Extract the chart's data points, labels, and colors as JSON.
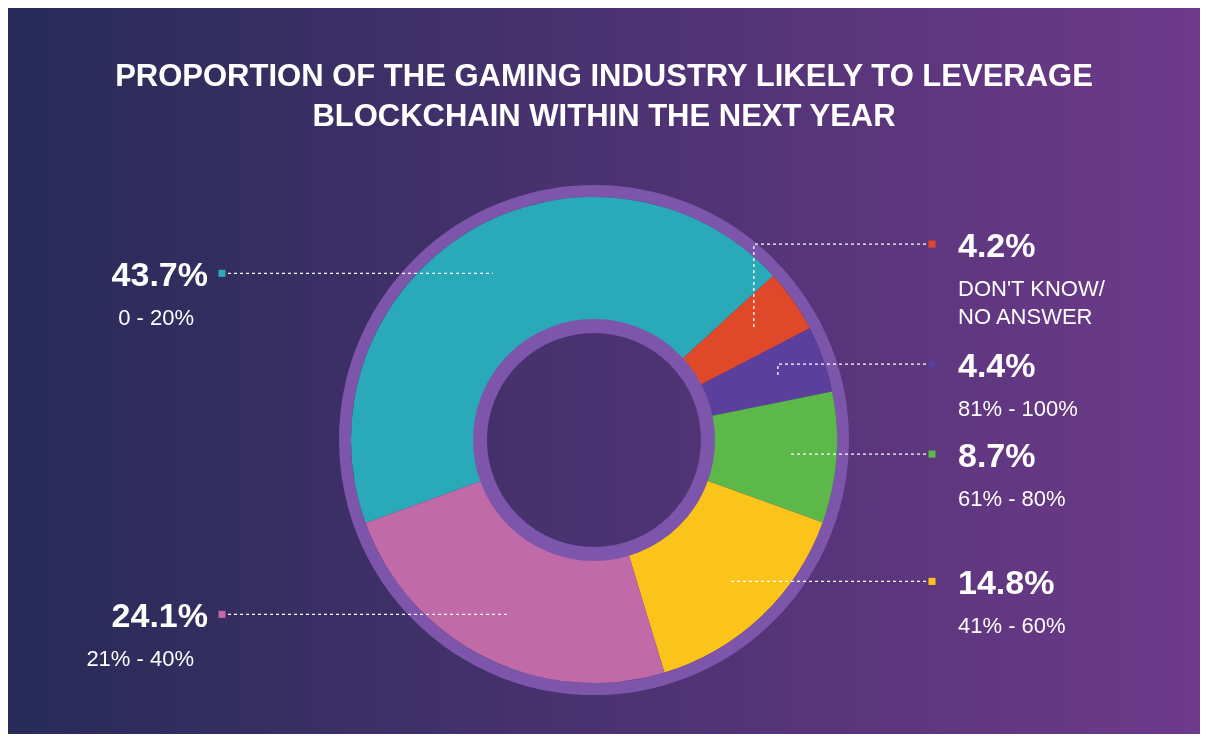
{
  "chart_data": {
    "type": "donut",
    "title": "PROPORTION OF THE GAMING INDUSTRY LIKELY TO LEVERAGE BLOCKCHAIN WITHIN THE NEXT YEAR",
    "categories": [
      "0 - 20%",
      "DON'T KNOW/\nNO ANSWER",
      "81% - 100%",
      "61% - 80%",
      "41% - 60%",
      "21% - 40%"
    ],
    "values": [
      43.7,
      4.2,
      4.4,
      8.7,
      14.8,
      24.1
    ],
    "value_labels": [
      "43.7%",
      "4.2%",
      "4.4%",
      "8.7%",
      "14.8%",
      "24.1%"
    ],
    "colors": [
      "#2aa9b8",
      "#e0482a",
      "#5a3f9c",
      "#5db84a",
      "#fbc41a",
      "#c06aa8"
    ]
  }
}
